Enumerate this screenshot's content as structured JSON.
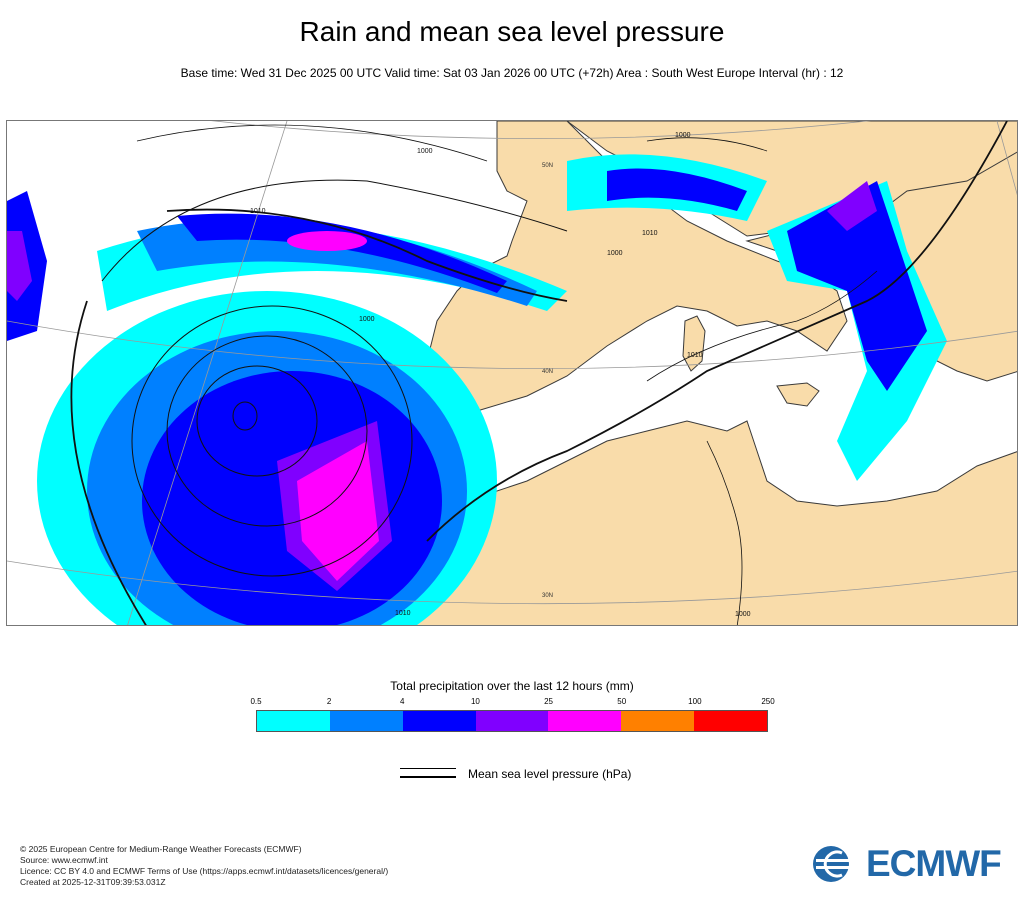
{
  "title": "Rain and mean sea level pressure",
  "subtitle": "Base time: Wed 31 Dec 2025 00 UTC Valid time: Sat 03 Jan 2026 00 UTC (+72h) Area : South West Europe Interval (hr) : 12",
  "map": {
    "isobar_labels": [
      "1000",
      "1010",
      "1000",
      "1010",
      "1000",
      "1000",
      "1010",
      "1010",
      "1000"
    ],
    "graticule_labels": [
      "50N",
      "40N",
      "30N"
    ],
    "colors": {
      "sea": "#ffffff",
      "land": "#f9dcaa",
      "coast": "#3a3a3a",
      "isobar": "#111111"
    }
  },
  "legend": {
    "title": "Total precipitation over the last 12 hours (mm)",
    "ticks": [
      "0.5",
      "2",
      "4",
      "10",
      "25",
      "50",
      "100",
      "250"
    ],
    "colors": [
      "#00ffff",
      "#0080ff",
      "#0000fe",
      "#8000ff",
      "#ff00ff",
      "#ff8000",
      "#ff0000"
    ],
    "pressure_label": "Mean sea level pressure (hPa)"
  },
  "footer": {
    "lines": [
      "© 2025 European Centre for Medium-Range Weather Forecasts (ECMWF)",
      "Source: www.ecmwf.int",
      "Licence: CC BY 4.0 and ECMWF Terms of Use (https://apps.ecmwf.int/datasets/licences/general/)",
      "Created at 2025-12-31T09:39:53.031Z"
    ]
  },
  "logo": {
    "text": "ECMWF",
    "color": "#2268a8"
  }
}
